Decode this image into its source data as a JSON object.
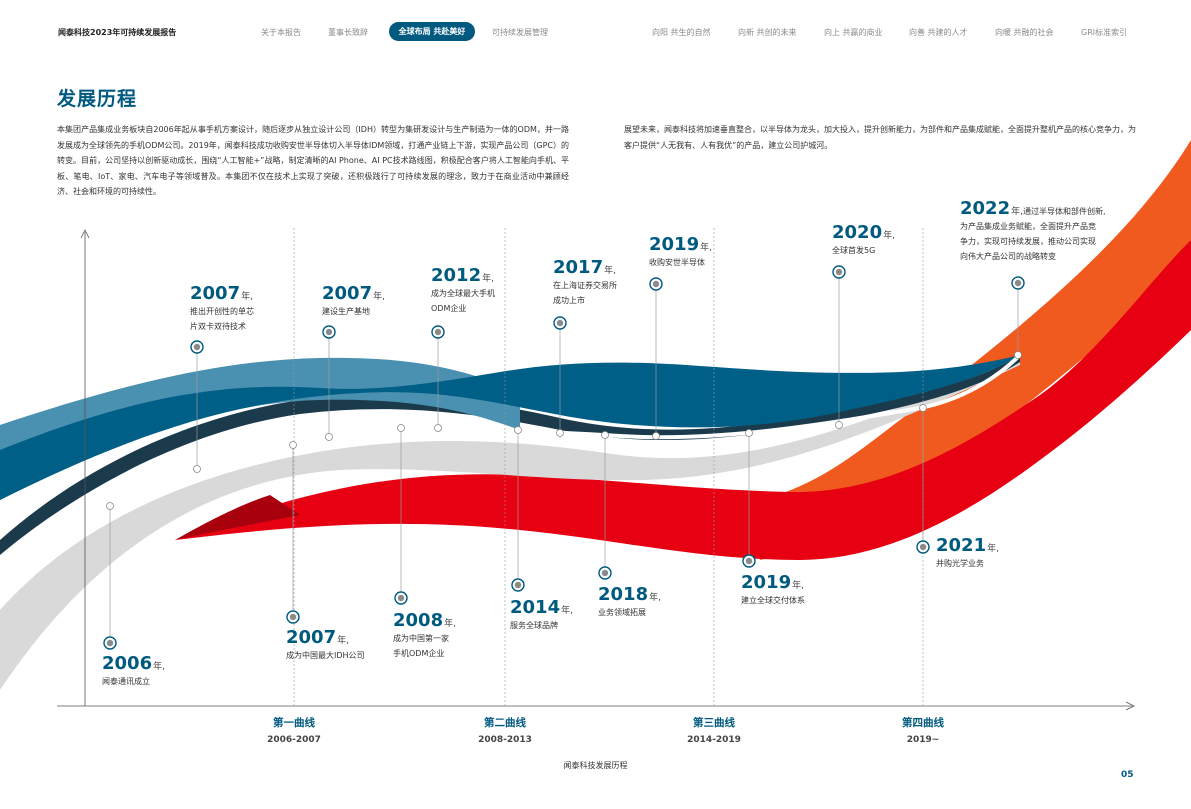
{
  "header": {
    "report_title": "闻泰科技2023年可持续发展报告",
    "nav": [
      "关于本报告",
      "董事长致辞",
      "全球布局 共赴美好",
      "可持续发展管理",
      "向阳 共生的自然",
      "向新 共创的未来",
      "向上 共赢的商业",
      "向善 共建的人才",
      "向暖 共融的社会",
      "GRI标准索引"
    ],
    "active_index": 2
  },
  "page_heading": "发展历程",
  "intro_left": "本集团产品集成业务板块自2006年起从事手机方案设计，随后逐步从独立设计公司（IDH）转型为集研发设计与生产制造为一体的ODM，并一路发展成为全球领先的手机ODM公司。2019年，闻泰科技成功收购安世半导体切入半导体IDM领域，打通产业链上下游，实现产品公司（GPC）的转变。目前，公司坚持以创新驱动成长，围绕“人工智能+”战略，制定清晰的AI Phone、AI PC技术路线图，积极配合客户将人工智能向手机、平板、笔电、IoT、家电、汽车电子等领域普及。本集团不仅在技术上实现了突破，还积极践行了可持续发展的理念，致力于在商业活动中兼顾经济、社会和环境的可持续性。",
  "intro_right": "展望未来，闻泰科技将加速垂直整合，以半导体为龙头，加大投入，提升创新能力，为部件和产品集成赋能，全面提升整机产品的核心竞争力，为客户提供“人无我有、人有我优”的产品，建立公司护城河。",
  "year_suffix": "年,",
  "events": [
    {
      "year": "2006",
      "lines": [
        "闻泰通讯成立"
      ]
    },
    {
      "year": "2007",
      "lines": [
        "推出开创性的单芯",
        "片双卡双待技术"
      ]
    },
    {
      "year": "2007",
      "lines": [
        "成为中国最大IDH公司"
      ]
    },
    {
      "year": "2007",
      "lines": [
        "建设生产基地"
      ]
    },
    {
      "year": "2008",
      "lines": [
        "成为中国第一家",
        "手机ODM企业"
      ]
    },
    {
      "year": "2012",
      "lines": [
        "成为全球最大手机",
        "ODM企业"
      ]
    },
    {
      "year": "2014",
      "lines": [
        "服务全球品牌"
      ]
    },
    {
      "year": "2017",
      "lines": [
        "在上海证券交易所",
        "成功上市"
      ]
    },
    {
      "year": "2018",
      "lines": [
        "业务领域拓展"
      ]
    },
    {
      "year": "2019",
      "lines": [
        "收购安世半导体"
      ]
    },
    {
      "year": "2019",
      "lines": [
        "建立全球交付体系"
      ]
    },
    {
      "year": "2020",
      "lines": [
        "全球首发5G"
      ]
    },
    {
      "year": "2021",
      "lines": [
        "并购光学业务"
      ]
    },
    {
      "year": "2022",
      "inline": "通过半导体和部件创新,",
      "lines": [
        "为产品集成业务赋能，全面提升产品竞",
        "争力，实现可持续发展，推动公司实现",
        "向伟大产品公司的战略转变"
      ]
    }
  ],
  "curves": [
    {
      "name": "第一曲线",
      "range": "2006-2007"
    },
    {
      "name": "第二曲线",
      "range": "2008-2013"
    },
    {
      "name": "第三曲线",
      "range": "2014-2019"
    },
    {
      "name": "第四曲线",
      "range": "2019~"
    }
  ],
  "footer": "闻泰科技发展历程",
  "page_number": "05",
  "colors": {
    "brand_blue": "#005a80",
    "red": "#e60012",
    "orange": "#f05a1e",
    "light_blue": "#4a90b0",
    "gray_band": "#d9d9d9"
  }
}
